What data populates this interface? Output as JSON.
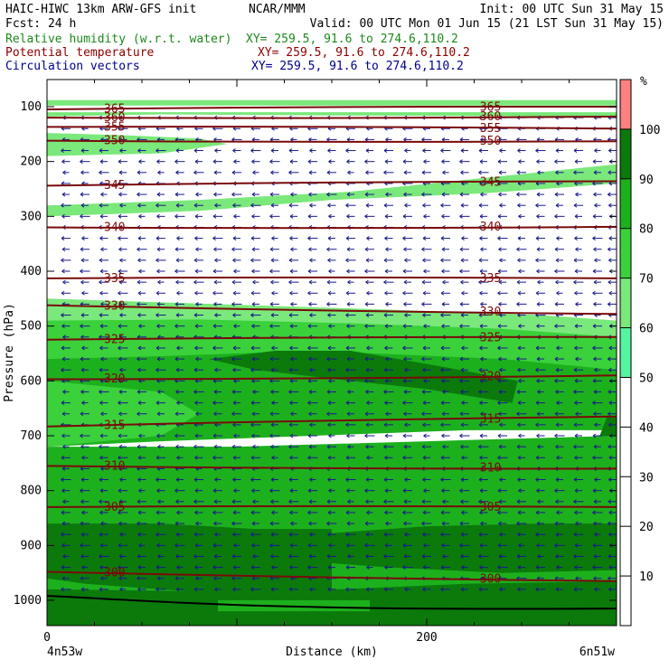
{
  "header": {
    "line1_left": "HAIC-HIWC 13km ARW-GFS init",
    "line1_center": "NCAR/MMM",
    "line1_right": "Init: 00 UTC Sun 31 May 15",
    "line2_left": "Fcst:    24 h",
    "line2_right": "Valid: 00 UTC Mon 01 Jun 15 (21 LST Sun 31 May 15)",
    "field1_name": "Relative humidity (w.r.t. water)",
    "field1_xy": "XY= 259.5, 91.6 to 274.6,110.2",
    "field2_name": "Potential temperature",
    "field2_xy": "XY= 259.5, 91.6 to 274.6,110.2",
    "field3_name": "Circulation vectors",
    "field3_xy": "XY= 259.5, 91.6 to 274.6,110.2"
  },
  "colors": {
    "rh_field_label": "#1a8a1a",
    "theta_field_label": "#8b0000",
    "vector_field_label": "#00008b",
    "theta_contour": "#7a0a0a",
    "vectors": "#1a1a8a"
  },
  "chart_data": {
    "type": "cross-section",
    "xlabel": "Distance (km)",
    "ylabel": "Pressure (hPa)",
    "xlim": [
      0,
      300
    ],
    "ylim": [
      1050,
      60
    ],
    "x_ticks": [
      0,
      200
    ],
    "y_ticks": [
      100,
      200,
      300,
      400,
      500,
      600,
      700,
      800,
      900,
      1000
    ],
    "left_endpoint": "4n53w",
    "right_endpoint": "6n51w",
    "colorbar": {
      "unit": "%",
      "ticks": [
        10,
        20,
        30,
        40,
        50,
        60,
        70,
        80,
        90,
        100
      ],
      "levels": [
        {
          "min": 50,
          "max": 60,
          "color": "#55f5a0"
        },
        {
          "min": 60,
          "max": 70,
          "color": "#7ae87a"
        },
        {
          "min": 70,
          "max": 80,
          "color": "#3ad13a"
        },
        {
          "min": 80,
          "max": 90,
          "color": "#1db01d"
        },
        {
          "min": 90,
          "max": 100,
          "color": "#0b7a0b"
        },
        {
          "min": 100,
          "max": 110,
          "color": "#ff8080"
        }
      ]
    },
    "theta_contours": [
      {
        "label": "365",
        "p_left": 105,
        "p_right": 100
      },
      {
        "label": "360",
        "p_left": 120,
        "p_right": 118
      },
      {
        "label": "355",
        "p_left": 137,
        "p_right": 140
      },
      {
        "label": "350",
        "p_left": 162,
        "p_right": 163
      },
      {
        "label": "345",
        "p_left": 244,
        "p_right": 236
      },
      {
        "label": "340",
        "p_left": 320,
        "p_right": 319
      },
      {
        "label": "335",
        "p_left": 413,
        "p_right": 413
      },
      {
        "label": "330",
        "p_left": 462,
        "p_right": 478
      },
      {
        "label": "325",
        "p_left": 525,
        "p_right": 520
      },
      {
        "label": "320",
        "p_left": 597,
        "p_right": 590
      },
      {
        "label": "315",
        "p_left": 683,
        "p_right": 665
      },
      {
        "label": "310",
        "p_left": 755,
        "p_right": 760
      },
      {
        "label": "305",
        "p_left": 830,
        "p_right": 830
      },
      {
        "label": "300",
        "p_left": 948,
        "p_right": 965
      }
    ],
    "rh_regions": [
      {
        "level": 110,
        "poly": [
          [
            0,
            60
          ],
          [
            300,
            60
          ],
          [
            300,
            90
          ],
          [
            0,
            90
          ]
        ]
      },
      {
        "level": 60,
        "poly": [
          [
            0,
            88
          ],
          [
            300,
            88
          ],
          [
            300,
            98
          ],
          [
            0,
            98
          ]
        ]
      },
      {
        "level": 60,
        "poly": [
          [
            0,
            110
          ],
          [
            300,
            110
          ],
          [
            300,
            118
          ],
          [
            150,
            116
          ],
          [
            60,
            114
          ],
          [
            0,
            118
          ]
        ]
      },
      {
        "level": 60,
        "poly": [
          [
            0,
            148
          ],
          [
            40,
            152
          ],
          [
            80,
            158
          ],
          [
            95,
            168
          ],
          [
            60,
            185
          ],
          [
            0,
            190
          ]
        ]
      },
      {
        "level": 60,
        "poly": [
          [
            0,
            280
          ],
          [
            80,
            270
          ],
          [
            160,
            255
          ],
          [
            230,
            230
          ],
          [
            300,
            205
          ],
          [
            300,
            240
          ],
          [
            230,
            258
          ],
          [
            150,
            270
          ],
          [
            80,
            290
          ],
          [
            0,
            300
          ]
        ]
      },
      {
        "level": 60,
        "poly": [
          [
            0,
            450
          ],
          [
            90,
            460
          ],
          [
            180,
            470
          ],
          [
            260,
            480
          ],
          [
            300,
            490
          ],
          [
            300,
            520
          ],
          [
            240,
            520
          ],
          [
            160,
            520
          ],
          [
            80,
            520
          ],
          [
            0,
            520
          ]
        ]
      },
      {
        "level": 70,
        "poly": [
          [
            0,
            490
          ],
          [
            80,
            488
          ],
          [
            160,
            495
          ],
          [
            240,
            505
          ],
          [
            300,
            520
          ],
          [
            300,
            600
          ],
          [
            200,
            590
          ],
          [
            100,
            590
          ],
          [
            0,
            600
          ]
        ]
      },
      {
        "level": 80,
        "poly": [
          [
            0,
            560
          ],
          [
            60,
            555
          ],
          [
            140,
            545
          ],
          [
            240,
            560
          ],
          [
            300,
            580
          ],
          [
            300,
            690
          ],
          [
            220,
            690
          ],
          [
            140,
            700
          ],
          [
            60,
            710
          ],
          [
            0,
            720
          ]
        ]
      },
      {
        "level": 90,
        "poly": [
          [
            85,
            560
          ],
          [
            120,
            545
          ],
          [
            160,
            545
          ],
          [
            210,
            575
          ],
          [
            248,
            600
          ],
          [
            245,
            640
          ],
          [
            200,
            615
          ],
          [
            160,
            600
          ],
          [
            110,
            580
          ]
        ]
      },
      {
        "level": 70,
        "poly": [
          [
            0,
            600
          ],
          [
            60,
            620
          ],
          [
            80,
            660
          ],
          [
            60,
            700
          ],
          [
            0,
            720
          ]
        ]
      },
      {
        "level": 90,
        "poly": [
          [
            295,
            665
          ],
          [
            300,
            665
          ],
          [
            300,
            740
          ],
          [
            290,
            710
          ]
        ]
      },
      {
        "level": 80,
        "poly": [
          [
            0,
            720
          ],
          [
            100,
            720
          ],
          [
            200,
            710
          ],
          [
            300,
            700
          ],
          [
            300,
            1050
          ],
          [
            0,
            1050
          ]
        ]
      },
      {
        "level": 90,
        "poly": [
          [
            0,
            860
          ],
          [
            60,
            860
          ],
          [
            110,
            870
          ],
          [
            150,
            870
          ],
          [
            150,
            1000
          ],
          [
            100,
            990
          ],
          [
            60,
            980
          ],
          [
            20,
            970
          ],
          [
            0,
            960
          ]
        ]
      },
      {
        "level": 90,
        "poly": [
          [
            140,
            880
          ],
          [
            200,
            865
          ],
          [
            260,
            860
          ],
          [
            300,
            860
          ],
          [
            300,
            945
          ],
          [
            240,
            950
          ],
          [
            180,
            940
          ],
          [
            140,
            930
          ]
        ]
      },
      {
        "level": 90,
        "poly": [
          [
            0,
            980
          ],
          [
            120,
            985
          ],
          [
            220,
            970
          ],
          [
            300,
            965
          ],
          [
            300,
            1050
          ],
          [
            0,
            1050
          ]
        ]
      },
      {
        "level": 80,
        "poly": [
          [
            90,
            1000
          ],
          [
            170,
            1000
          ],
          [
            170,
            1020
          ],
          [
            90,
            1020
          ]
        ]
      }
    ],
    "terrain": {
      "p_left": 992,
      "p_right": 1015
    },
    "vector_columns": [
      10,
      20,
      30,
      40,
      50,
      60,
      70,
      80,
      90,
      100,
      110,
      120,
      130,
      140,
      150,
      160,
      170,
      180,
      190,
      200,
      210,
      220,
      230,
      240,
      250,
      260,
      270,
      280,
      290,
      298
    ],
    "vector_levels": [
      120,
      140,
      160,
      180,
      200,
      220,
      240,
      260,
      280,
      300,
      320,
      340,
      360,
      380,
      400,
      420,
      440,
      460,
      480,
      500,
      520,
      540,
      560,
      580,
      600,
      620,
      640,
      660,
      680,
      700,
      720,
      740,
      760,
      780,
      800,
      820,
      840,
      860,
      880,
      900,
      920,
      940,
      960,
      980
    ]
  }
}
